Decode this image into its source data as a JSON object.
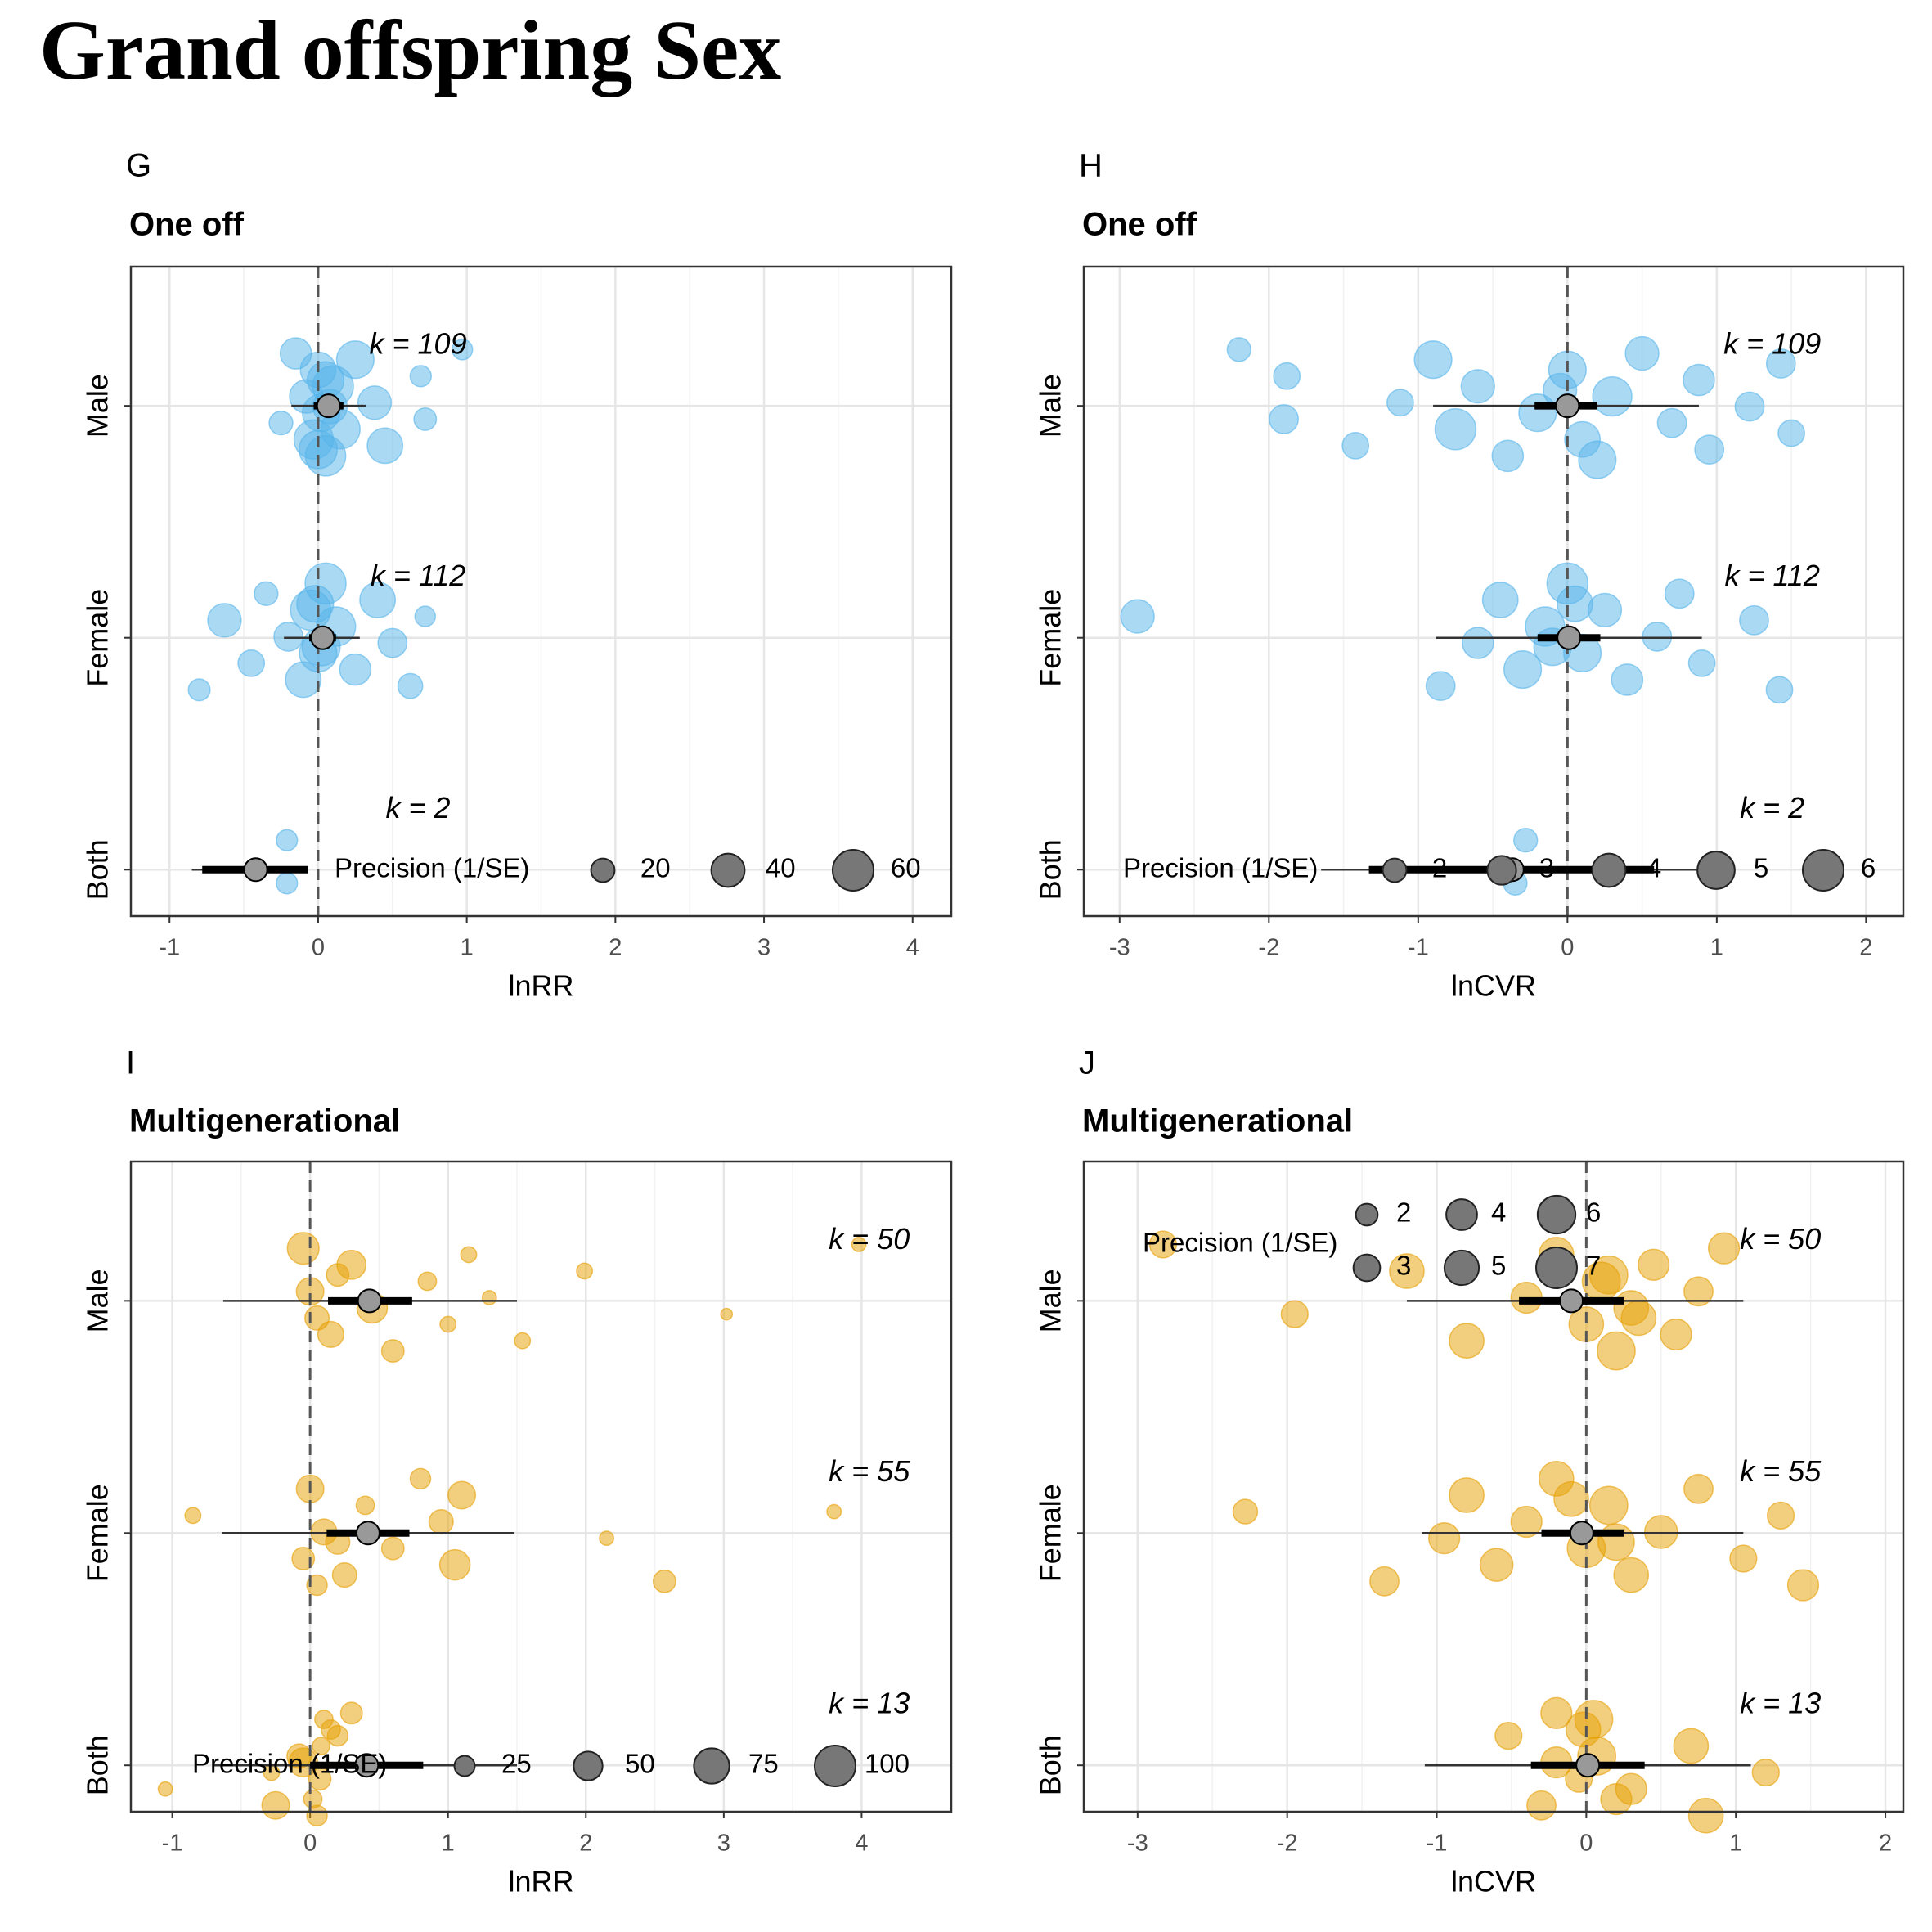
{
  "title": "Grand offspring Sex",
  "chart_data": [
    {
      "type": "orchard",
      "label": "G",
      "subtitle": "One off",
      "color": "#56B4E9",
      "xlabel": "lnRR",
      "categories": [
        "Male",
        "Female",
        "Both"
      ],
      "xlim": [
        -1.26,
        4.26
      ],
      "xticks": [
        -1,
        0,
        1,
        2,
        3,
        4
      ],
      "grid": true,
      "estimates": [
        0.07,
        0.03,
        -0.42
      ],
      "ci": [
        [
          -0.03,
          0.17
        ],
        [
          -0.06,
          0.12
        ],
        [
          -0.78,
          -0.07
        ]
      ],
      "pi": [
        [
          -0.18,
          0.32
        ],
        [
          -0.23,
          0.28
        ],
        [
          -0.85,
          -0.07
        ]
      ],
      "k_labels": [
        "k = 109",
        "k = 112",
        "k = 2"
      ],
      "points": [
        {
          "x": [
            0.97,
            0.72,
            0.69,
            0.45,
            0.38,
            0.25,
            0.15,
            0.1,
            0.05,
            0.02,
            0,
            -0.03,
            -0.08,
            -0.15,
            -0.25,
            0.05,
            0.0,
            0.08
          ],
          "precision": [
            15,
            18,
            16,
            45,
            40,
            50,
            55,
            60,
            58,
            50,
            45,
            55,
            40,
            35,
            20,
            48,
            52,
            42
          ]
        },
        {
          "x": [
            0.72,
            0.62,
            0.5,
            0.4,
            0.25,
            0.12,
            0.05,
            0,
            -0.05,
            -0.1,
            -0.2,
            -0.35,
            -0.45,
            -0.63,
            -0.8,
            0.02,
            -0.02
          ],
          "precision": [
            15,
            22,
            30,
            45,
            35,
            55,
            60,
            50,
            58,
            45,
            30,
            20,
            25,
            40,
            17,
            52,
            48
          ]
        },
        {
          "x": [
            -0.21,
            -0.21
          ],
          "precision": [
            16,
            16
          ]
        }
      ],
      "legend_title": "Precision (1/SE)",
      "legend_sizes": [
        20,
        40,
        60
      ],
      "legend_position": "bottom"
    },
    {
      "type": "orchard",
      "label": "H",
      "subtitle": "One off",
      "color": "#56B4E9",
      "xlabel": "lnCVR",
      "categories": [
        "Male",
        "Female",
        "Both"
      ],
      "xlim": [
        -3.24,
        2.25
      ],
      "xticks": [
        -3,
        -2,
        -1,
        0,
        1,
        2
      ],
      "grid": true,
      "estimates": [
        0.0,
        0.01,
        -0.37
      ],
      "ci": [
        [
          -0.22,
          0.2
        ],
        [
          -0.2,
          0.22
        ],
        [
          -1.33,
          0.58
        ]
      ],
      "pi": [
        [
          -0.9,
          0.88
        ],
        [
          -0.88,
          0.9
        ],
        [
          -1.65,
          0.92
        ]
      ],
      "k_labels": [
        "k = 109",
        "k = 112",
        "k = 2"
      ],
      "points": [
        {
          "x": [
            -2.2,
            -1.9,
            -1.88,
            -1.42,
            -1.12,
            -0.9,
            -0.75,
            -0.6,
            -0.4,
            -0.2,
            0,
            0.1,
            0.3,
            0.5,
            0.7,
            0.88,
            0.95,
            1.22,
            1.43,
            1.5,
            -0.05,
            0.2
          ],
          "precision": [
            2,
            3,
            2.5,
            2.5,
            2.5,
            5,
            6,
            4,
            3.5,
            5,
            5,
            4.5,
            5.5,
            4,
            3,
            3.5,
            3,
            3,
            3,
            2.5,
            4,
            5
          ]
        },
        {
          "x": [
            -2.88,
            -0.85,
            -0.6,
            -0.45,
            -0.3,
            -0.15,
            0,
            0.1,
            0.25,
            0.4,
            0.6,
            0.75,
            0.9,
            1.25,
            1.42,
            -0.1,
            0.05
          ],
          "precision": [
            4,
            3,
            3.5,
            4.5,
            5,
            5.5,
            6,
            5,
            4,
            3.5,
            3,
            3,
            2.5,
            3,
            2.5,
            5,
            4.5
          ]
        },
        {
          "x": [
            -0.35,
            -0.28
          ],
          "precision": [
            2,
            2
          ]
        }
      ],
      "legend_title": "Precision (1/SE)",
      "legend_sizes": [
        2,
        3,
        4,
        5,
        6
      ],
      "legend_position": "bottom"
    },
    {
      "type": "orchard",
      "label": "I",
      "subtitle": "Multigenerational",
      "color": "#E69F00",
      "xlabel": "lnRR",
      "categories": [
        "Male",
        "Female",
        "Both"
      ],
      "xlim": [
        -1.3,
        4.65
      ],
      "xticks": [
        -1,
        0,
        1,
        2,
        3,
        4
      ],
      "grid": true,
      "estimates": [
        0.43,
        0.42,
        0.41
      ],
      "ci": [
        [
          0.13,
          0.74
        ],
        [
          0.12,
          0.72
        ],
        [
          0,
          0.82
        ]
      ],
      "pi": [
        [
          -0.63,
          1.5
        ],
        [
          -0.64,
          1.48
        ],
        [
          -0.7,
          1.5
        ]
      ],
      "k_labels": [
        "k = 50",
        "k = 55",
        "k = 13"
      ],
      "points": [
        {
          "x": [
            3.98,
            3.02,
            1.99,
            1.54,
            1.3,
            1.15,
            1.0,
            0.85,
            0.6,
            0.45,
            0.3,
            0.15,
            0,
            -0.05,
            0.05,
            0.2
          ],
          "precision": [
            12,
            8,
            15,
            15,
            12,
            15,
            15,
            20,
            30,
            55,
            50,
            40,
            45,
            60,
            35,
            30
          ]
        },
        {
          "x": [
            3.8,
            2.57,
            2.15,
            1.1,
            1.05,
            0.95,
            0.8,
            0.6,
            0.4,
            0.25,
            0.1,
            0,
            -0.05,
            -0.85,
            0.05,
            0.2
          ],
          "precision": [
            12,
            30,
            12,
            45,
            55,
            35,
            25,
            30,
            20,
            35,
            40,
            45,
            30,
            15,
            25,
            35
          ]
        },
        {
          "x": [
            0.07,
            0.2,
            -0.25,
            -0.05,
            0.1,
            -1.05,
            0.08,
            0.05,
            -0.28,
            0.15,
            0.02,
            -0.08,
            0.3
          ],
          "precision": [
            30,
            25,
            45,
            50,
            20,
            12,
            18,
            25,
            15,
            22,
            20,
            35,
            28
          ]
        }
      ],
      "legend_title": "Precision (1/SE)",
      "legend_sizes": [
        25,
        50,
        75,
        100
      ],
      "legend_position": "bottom"
    },
    {
      "type": "orchard",
      "label": "J",
      "subtitle": "Multigenerational",
      "color": "#E69F00",
      "xlabel": "lnCVR",
      "categories": [
        "Male",
        "Female",
        "Both"
      ],
      "xlim": [
        -3.36,
        2.12
      ],
      "xticks": [
        -3,
        -2,
        -1,
        0,
        1,
        2
      ],
      "grid": true,
      "estimates": [
        -0.1,
        -0.03,
        0.01
      ],
      "ci": [
        [
          -0.45,
          0.25
        ],
        [
          -0.3,
          0.25
        ],
        [
          -0.37,
          0.39
        ]
      ],
      "pi": [
        [
          -1.2,
          1.05
        ],
        [
          -1.1,
          1.05
        ],
        [
          -1.08,
          1.1
        ]
      ],
      "k_labels": [
        "k = 50",
        "k = 55",
        "k = 13"
      ],
      "points": [
        {
          "x": [
            -2.83,
            -1.95,
            -1.2,
            -0.8,
            -0.4,
            -0.2,
            0,
            0.1,
            0.2,
            0.3,
            0.45,
            0.6,
            0.75,
            0.92,
            0.35,
            0.15
          ],
          "precision": [
            3,
            3,
            5,
            5,
            4,
            5,
            5,
            6,
            6,
            5,
            4,
            4,
            3.5,
            4,
            5,
            6
          ]
        },
        {
          "x": [
            -2.28,
            -1.35,
            -0.95,
            -0.8,
            -0.6,
            -0.4,
            -0.2,
            0,
            0.15,
            0.3,
            0.5,
            0.75,
            1.05,
            1.3,
            1.45,
            0.2,
            -0.1
          ],
          "precision": [
            2.5,
            3.5,
            4,
            5,
            4.5,
            4,
            5,
            6,
            6,
            5,
            4.5,
            3.5,
            3,
            3,
            4,
            5.5,
            5
          ]
        },
        {
          "x": [
            -0.05,
            -0.52,
            -0.3,
            -0.2,
            0.05,
            0.3,
            0.7,
            0.8,
            1.2,
            -0.02,
            0.2,
            0.07,
            -0.2
          ],
          "precision": [
            3,
            3,
            3.5,
            4,
            6,
            4,
            5,
            5,
            3,
            5,
            4,
            6,
            4
          ]
        }
      ],
      "legend_title": "Precision (1/SE)",
      "legend_sizes": [
        2,
        3,
        4,
        5,
        6,
        7
      ],
      "legend_position": "top"
    }
  ]
}
